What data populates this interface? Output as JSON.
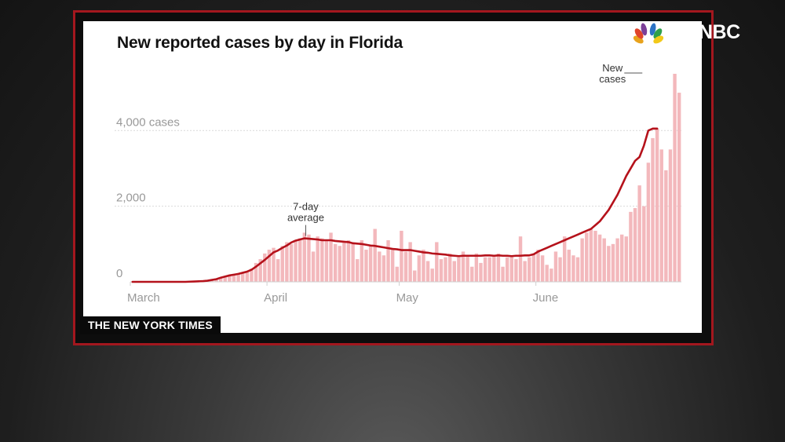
{
  "network": {
    "name": "NBC"
  },
  "caption": "THE NEW YORK TIMES",
  "colors": {
    "bar": "#f3b8bc",
    "line": "#b5121b",
    "frame": "#a3171e",
    "grid": "#d9d9d9",
    "tick": "#999999"
  },
  "chart_data": {
    "type": "bar",
    "title": "New reported cases by day in Florida",
    "xlabel": "",
    "ylabel": "",
    "ylim": [
      0,
      5500
    ],
    "grid": true,
    "y_ticks": [
      {
        "value": 0,
        "label": "0"
      },
      {
        "value": 2000,
        "label": "2,000"
      },
      {
        "value": 4000,
        "label": "4,000 cases"
      }
    ],
    "month_labels": [
      {
        "day_index": 0,
        "label": "March"
      },
      {
        "day_index": 31,
        "label": "April"
      },
      {
        "day_index": 61,
        "label": "May"
      },
      {
        "day_index": 92,
        "label": "June"
      }
    ],
    "annotations": [
      {
        "id": "avg",
        "line1": "7-day",
        "line2": "average",
        "day_index": 40,
        "value": 1150
      },
      {
        "id": "new",
        "line1": "New",
        "line2": "cases",
        "day_index": 116,
        "value": 5500
      }
    ],
    "series": [
      {
        "name": "New cases",
        "kind": "bar",
        "values": [
          5,
          5,
          5,
          5,
          5,
          5,
          5,
          5,
          5,
          5,
          5,
          5,
          5,
          8,
          10,
          15,
          25,
          45,
          60,
          90,
          120,
          150,
          180,
          210,
          230,
          250,
          280,
          350,
          500,
          600,
          750,
          850,
          900,
          600,
          950,
          1050,
          1000,
          1100,
          1150,
          1300,
          1250,
          800,
          1200,
          1150,
          1100,
          1300,
          1000,
          950,
          1050,
          1100,
          1000,
          600,
          1100,
          850,
          950,
          1400,
          800,
          700,
          1100,
          850,
          400,
          1350,
          800,
          1050,
          300,
          700,
          850,
          550,
          350,
          1050,
          600,
          650,
          750,
          550,
          650,
          800,
          700,
          400,
          750,
          500,
          650,
          650,
          700,
          750,
          400,
          650,
          700,
          600,
          1200,
          550,
          650,
          750,
          850,
          700,
          450,
          350,
          800,
          650,
          1200,
          850,
          700,
          650,
          1150,
          1300,
          1400,
          1350,
          1250,
          1150,
          950,
          1000,
          1150,
          1250,
          1200,
          1850,
          1950,
          2550,
          2000,
          3150,
          3800,
          4050,
          3500,
          2950,
          3500,
          5500,
          5000
        ],
        "color": "#f3b8bc"
      },
      {
        "name": "7-day average",
        "kind": "line",
        "values": [
          0,
          0,
          0,
          0,
          0,
          0,
          0,
          0,
          0,
          0,
          0,
          0,
          0,
          5,
          10,
          15,
          20,
          30,
          50,
          70,
          110,
          140,
          170,
          190,
          210,
          240,
          270,
          320,
          400,
          490,
          580,
          680,
          780,
          830,
          900,
          960,
          1040,
          1090,
          1120,
          1150,
          1140,
          1130,
          1120,
          1100,
          1100,
          1100,
          1080,
          1070,
          1060,
          1050,
          1020,
          1010,
          1000,
          980,
          960,
          950,
          930,
          910,
          890,
          870,
          860,
          840,
          840,
          840,
          820,
          800,
          780,
          770,
          750,
          740,
          730,
          720,
          700,
          690,
          680,
          690,
          690,
          690,
          690,
          690,
          700,
          700,
          690,
          700,
          690,
          690,
          680,
          690,
          690,
          700,
          700,
          730,
          800,
          850,
          900,
          950,
          1000,
          1050,
          1100,
          1150,
          1200,
          1250,
          1300,
          1350,
          1400,
          1500,
          1600,
          1750,
          1900,
          2100,
          2300,
          2550,
          2800,
          3000,
          3200,
          3300,
          3600,
          4000,
          4050,
          4050
        ]
      }
    ]
  }
}
